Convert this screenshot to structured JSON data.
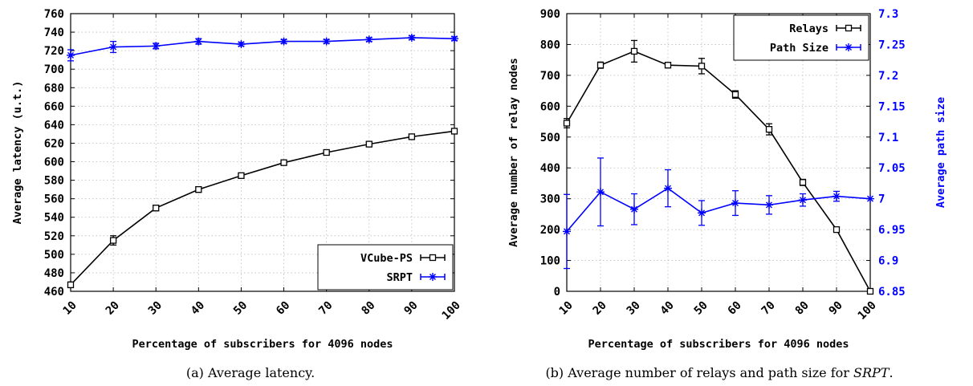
{
  "chart_data": [
    {
      "type": "line",
      "caption": "(a) Average latency.",
      "xlabel": "Percentage of subscribers for 4096 nodes",
      "ylabel": "Average latency (u.t.)",
      "x": [
        10,
        20,
        30,
        40,
        50,
        60,
        70,
        80,
        90,
        100
      ],
      "xlim": [
        10,
        100
      ],
      "ylim": [
        460,
        760
      ],
      "yticks": [
        460,
        480,
        500,
        520,
        540,
        560,
        580,
        600,
        620,
        640,
        660,
        680,
        700,
        720,
        740,
        760
      ],
      "grid": true,
      "legend_position": "bottom-right",
      "series": [
        {
          "name": "VCube-PS",
          "color": "#000000",
          "marker": "square",
          "values": [
            467,
            515,
            550,
            570,
            585,
            599,
            610,
            619,
            627,
            633
          ],
          "errors": [
            3,
            5,
            3,
            3,
            2,
            2,
            2,
            2,
            2,
            2
          ]
        },
        {
          "name": "SRPT",
          "color": "#0000ff",
          "marker": "star",
          "values": [
            715,
            724,
            725,
            730,
            727,
            730,
            730,
            732,
            734,
            733
          ],
          "errors": [
            6,
            6,
            3,
            3,
            2,
            2,
            2,
            2,
            2,
            2
          ]
        }
      ]
    },
    {
      "type": "line",
      "caption_prefix": "(b) Average number of relays and path size for ",
      "caption_em": "SRPT",
      "caption_suffix": ".",
      "xlabel": "Percentage of subscribers for 4096 nodes",
      "ylabel": "Average number of relay nodes",
      "y2label": "Average path size",
      "x": [
        10,
        20,
        30,
        40,
        50,
        60,
        70,
        80,
        90,
        100
      ],
      "xlim": [
        10,
        100
      ],
      "ylim": [
        0,
        900
      ],
      "yticks": [
        0,
        100,
        200,
        300,
        400,
        500,
        600,
        700,
        800,
        900
      ],
      "y2lim": [
        6.85,
        7.3
      ],
      "y2ticks": [
        "6.85",
        "6.9",
        "6.95",
        "7",
        "7.05",
        "7.1",
        "7.15",
        "7.2",
        "7.25",
        "7.3"
      ],
      "grid": true,
      "legend_position": "top-right",
      "series": [
        {
          "name": "Relays",
          "axis": "left",
          "color": "#000000",
          "marker": "square",
          "values": [
            545,
            733,
            778,
            733,
            730,
            638,
            525,
            353,
            200,
            0
          ],
          "errors": [
            15,
            10,
            35,
            8,
            25,
            12,
            18,
            10,
            5,
            0
          ]
        },
        {
          "name": "Path Size",
          "axis": "right",
          "color": "#0000ff",
          "marker": "star",
          "values": [
            6.947,
            7.011,
            6.983,
            7.017,
            6.977,
            6.993,
            6.99,
            6.998,
            7.004,
            7.0
          ],
          "errors": [
            0.06,
            0.055,
            0.025,
            0.03,
            0.02,
            0.02,
            0.015,
            0.01,
            0.008,
            0
          ]
        }
      ]
    }
  ]
}
